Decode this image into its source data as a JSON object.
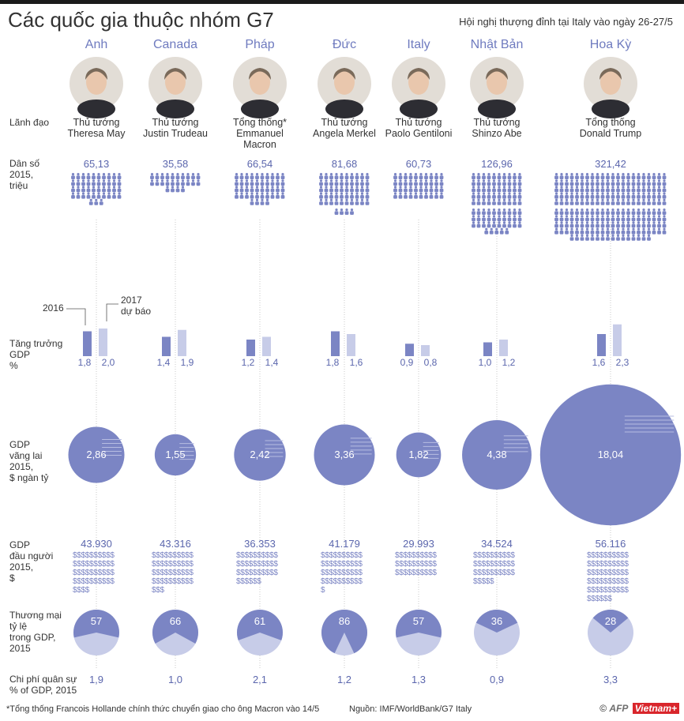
{
  "header": {
    "title": "Các quốc gia thuộc nhóm G7",
    "subtitle": "Hội nghị thượng đỉnh tại Italy vào ngày 26-27/5"
  },
  "row_labels": {
    "leader": "Lãnh đạo",
    "population": "Dân số\n2015,\ntriệu",
    "gdp_growth": "Tăng trưởng\nGDP\n%",
    "gdp_current": "GDP\nvãng lai\n2015,\n$ ngàn tỷ",
    "gdp_per_capita": "GDP\nđầu người\n2015,\n$",
    "trade": "Thương mại\ntỷ lệ\ntrong GDP,\n2015",
    "military": "Chi phí quân sự\n% of GDP, 2015"
  },
  "legend": {
    "year_2016": "2016",
    "year_2017": "2017\ndự báo"
  },
  "footer": {
    "footnote": "*Tổng thống Francois Hollande chính thức chuyển giao cho ông Macron vào 14/5",
    "source": "Nguồn: IMF/WorldBank/G7 Italy",
    "credit_copyright": "©",
    "credit_afp": "AFP",
    "credit_vn": "Vietnam+"
  },
  "chart_data": {
    "type": "table",
    "series_colors": {
      "primary": "#7b85c4",
      "light": "#c7cce8"
    },
    "countries": [
      {
        "name": "Anh",
        "leader": "Thủ tướng\nTheresa May",
        "population": "65,13",
        "growth_2016": "1,8",
        "growth_2017": "2,0",
        "gdp": "2,86",
        "gdp_per_capita": "43.930",
        "trade": "57",
        "military": "1,9"
      },
      {
        "name": "Canada",
        "leader": "Thủ tướng\nJustin Trudeau",
        "population": "35,58",
        "growth_2016": "1,4",
        "growth_2017": "1,9",
        "gdp": "1,55",
        "gdp_per_capita": "43.316",
        "trade": "66",
        "military": "1,0"
      },
      {
        "name": "Pháp",
        "leader": "Tổng thống*\nEmmanuel\nMacron",
        "population": "66,54",
        "growth_2016": "1,2",
        "growth_2017": "1,4",
        "gdp": "2,42",
        "gdp_per_capita": "36.353",
        "trade": "61",
        "military": "2,1"
      },
      {
        "name": "Đức",
        "leader": "Thủ tướng\nAngela Merkel",
        "population": "81,68",
        "growth_2016": "1,8",
        "growth_2017": "1,6",
        "gdp": "3,36",
        "gdp_per_capita": "41.179",
        "trade": "86",
        "military": "1,2"
      },
      {
        "name": "Italy",
        "leader": "Thủ tướng\nPaolo Gentiloni",
        "population": "60,73",
        "growth_2016": "0,9",
        "growth_2017": "0,8",
        "gdp": "1,82",
        "gdp_per_capita": "29.993",
        "trade": "57",
        "military": "1,3"
      },
      {
        "name": "Nhật Bản",
        "leader": "Thủ tướng\nShinzo Abe",
        "population": "126,96",
        "growth_2016": "1,0",
        "growth_2017": "1,2",
        "gdp": "4,38",
        "gdp_per_capita": "34.524",
        "trade": "36",
        "military": "0,9"
      },
      {
        "name": "Hoa Kỳ",
        "leader": "Tổng thống\nDonald Trump",
        "population": "321,42",
        "growth_2016": "1,6",
        "growth_2017": "2,3",
        "gdp": "18,04",
        "gdp_per_capita": "56.116",
        "trade": "28",
        "military": "3,3"
      }
    ]
  }
}
